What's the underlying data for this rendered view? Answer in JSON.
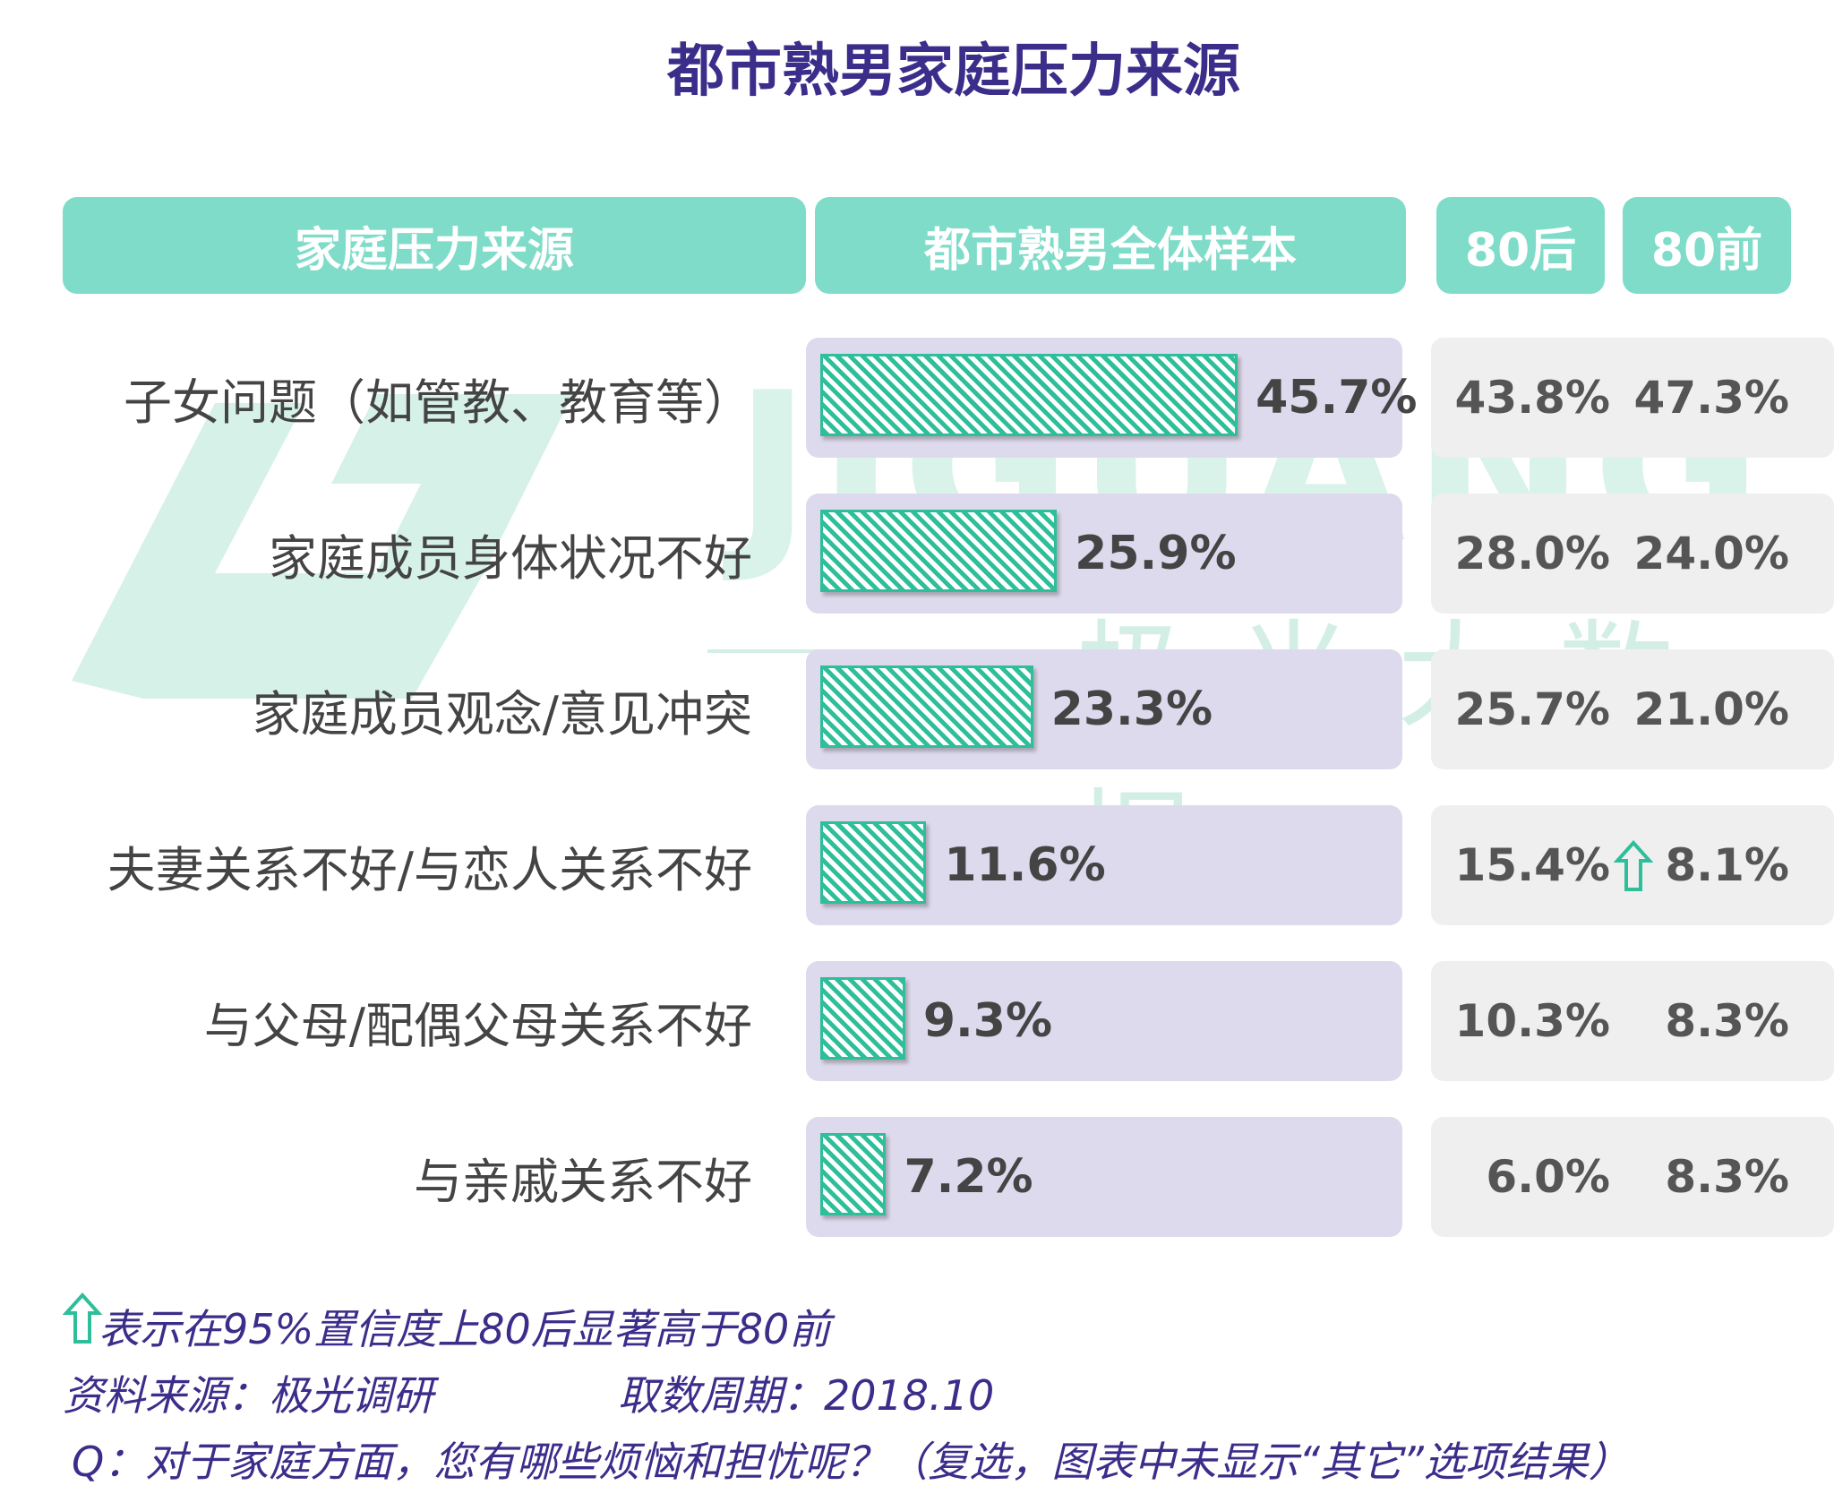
{
  "title": "都市熟男家庭压力来源",
  "header": {
    "col_source": "家庭压力来源",
    "col_total": "都市熟男全体样本",
    "col_post80": "80后",
    "col_pre80": "80前"
  },
  "watermark": {
    "latin": "JIGUANG",
    "chinese": "极光大数据"
  },
  "chart_data": {
    "type": "bar",
    "orientation": "horizontal",
    "categories": [
      "子女问题（如管教、教育等）",
      "家庭成员身体状况不好",
      "家庭成员观念/意见冲突",
      "夫妻关系不好/与恋人关系不好",
      "与父母/配偶父母关系不好",
      "与亲戚关系不好"
    ],
    "series": [
      {
        "name": "都市熟男全体样本",
        "values": [
          45.7,
          25.9,
          23.3,
          11.6,
          9.3,
          7.2
        ],
        "labels": [
          "45.7%",
          "25.9%",
          "23.3%",
          "11.6%",
          "9.3%",
          "7.2%"
        ]
      },
      {
        "name": "80后",
        "values": [
          43.8,
          28.0,
          25.7,
          15.4,
          10.3,
          6.0
        ],
        "labels": [
          "43.8%",
          "28.0%",
          "25.7%",
          "15.4%",
          "10.3%",
          "6.0%"
        ]
      },
      {
        "name": "80前",
        "values": [
          47.3,
          24.0,
          21.0,
          8.1,
          8.3,
          8.3
        ],
        "labels": [
          "47.3%",
          "24.0%",
          "21.0%",
          "8.1%",
          "8.3%",
          "8.3%"
        ]
      }
    ],
    "significant_higher_post80": [
      false,
      false,
      false,
      true,
      false,
      false
    ],
    "colors": {
      "bar": "#2ebf9a",
      "header": "#7fdcc9",
      "row_bg": "#dedaed",
      "title": "#3b2d8a"
    }
  },
  "footnotes": {
    "legend_note": "表示在95%置信度上80后显著高于80前",
    "source": "资料来源：极光调研",
    "period": "取数周期：2018.10",
    "question": "Q：对于家庭方面，您有哪些烦恼和担忧呢？（复选，图表中未显示“其它”选项结果）"
  }
}
